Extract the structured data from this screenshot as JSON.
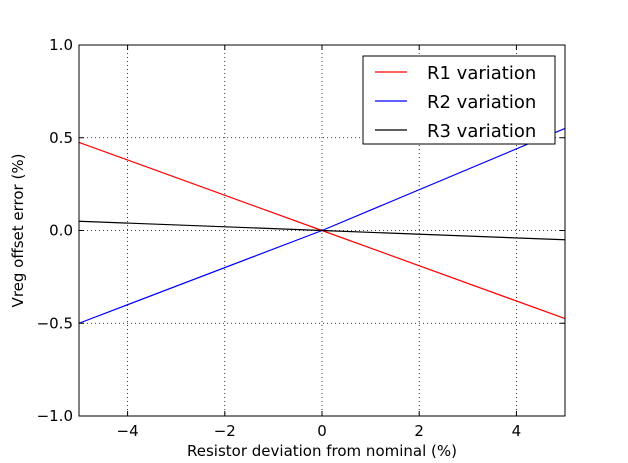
{
  "chart_data": {
    "type": "line",
    "title": "",
    "xlabel": "Resistor deviation from nominal (%)",
    "ylabel": "Vreg offset error (%)",
    "xlim": [
      -5,
      5
    ],
    "ylim": [
      -1.0,
      1.0
    ],
    "xticks": [
      -4,
      -2,
      0,
      2,
      4
    ],
    "xtick_labels": [
      "−4",
      "−2",
      "0",
      "2",
      "4"
    ],
    "yticks": [
      -1.0,
      -0.5,
      0.0,
      0.5,
      1.0
    ],
    "ytick_labels": [
      "−1.0",
      "−0.5",
      "0.0",
      "0.5",
      "1.0"
    ],
    "grid": true,
    "legend_position": "top-right",
    "series": [
      {
        "name": "R1 variation",
        "color": "#ff0000",
        "x": [
          -5,
          0,
          5
        ],
        "y": [
          0.475,
          0.0,
          -0.475
        ]
      },
      {
        "name": "R2 variation",
        "color": "#0000ff",
        "x": [
          -5,
          0,
          5
        ],
        "y": [
          -0.5,
          0.0,
          0.55
        ]
      },
      {
        "name": "R3 variation",
        "color": "#000000",
        "x": [
          -5,
          0,
          5
        ],
        "y": [
          0.05,
          0.0,
          -0.05
        ]
      }
    ]
  }
}
